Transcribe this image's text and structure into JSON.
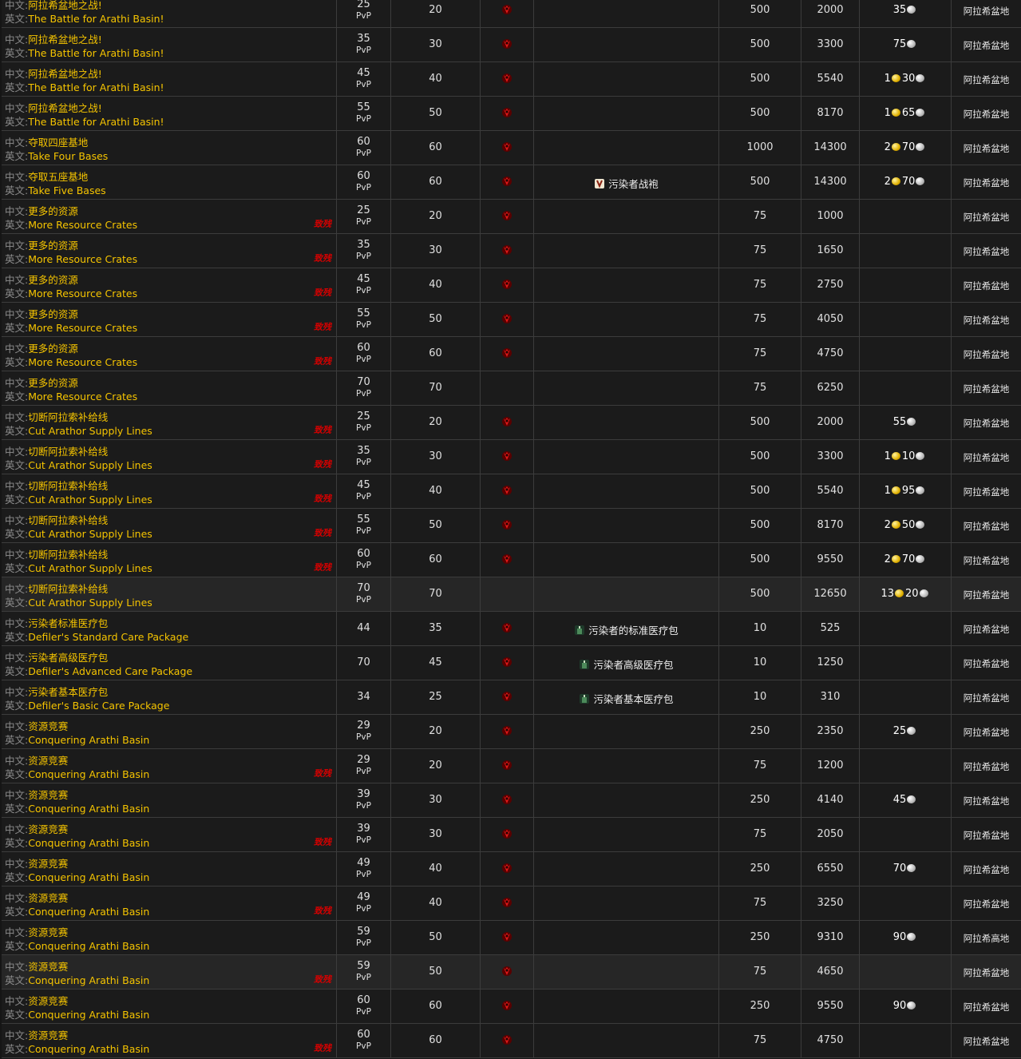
{
  "table": {
    "labels": {
      "cn": "中文:",
      "en": "英文:"
    },
    "rows": [
      {
        "cn": "阿拉希盆地之战!",
        "en": "The Battle for Arathi Basin!",
        "level": 25,
        "tag": "PvP",
        "req": 20,
        "horde": true,
        "rep": 500,
        "xp": 2000,
        "silver": 35,
        "zone": "阿拉希盆地"
      },
      {
        "cn": "阿拉希盆地之战!",
        "en": "The Battle for Arathi Basin!",
        "level": 35,
        "tag": "PvP",
        "req": 30,
        "horde": true,
        "rep": 500,
        "xp": 3300,
        "silver": 75,
        "zone": "阿拉希盆地"
      },
      {
        "cn": "阿拉希盆地之战!",
        "en": "The Battle for Arathi Basin!",
        "level": 45,
        "tag": "PvP",
        "req": 40,
        "horde": true,
        "rep": 500,
        "xp": 5540,
        "gold": 1,
        "silver": 30,
        "zone": "阿拉希盆地"
      },
      {
        "cn": "阿拉希盆地之战!",
        "en": "The Battle for Arathi Basin!",
        "level": 55,
        "tag": "PvP",
        "req": 50,
        "horde": true,
        "rep": 500,
        "xp": 8170,
        "gold": 1,
        "silver": 65,
        "zone": "阿拉希盆地"
      },
      {
        "cn": "夺取四座基地",
        "en": "Take Four Bases",
        "level": 60,
        "tag": "PvP",
        "req": 60,
        "horde": true,
        "rep": 1000,
        "xp": 14300,
        "gold": 2,
        "silver": 70,
        "zone": "阿拉希盆地"
      },
      {
        "cn": "夺取五座基地",
        "en": "Take Five Bases",
        "level": 60,
        "tag": "PvP",
        "req": 60,
        "horde": true,
        "reward": "污染者战袍",
        "rep": 500,
        "xp": 14300,
        "gold": 2,
        "silver": 70,
        "zone": "阿拉希盆地"
      },
      {
        "cn": "更多的资源",
        "en": "More Resource Crates",
        "note": "致残",
        "level": 25,
        "tag": "PvP",
        "req": 20,
        "horde": true,
        "rep": 75,
        "xp": 1000,
        "zone": "阿拉希盆地"
      },
      {
        "cn": "更多的资源",
        "en": "More Resource Crates",
        "note": "致残",
        "level": 35,
        "tag": "PvP",
        "req": 30,
        "horde": true,
        "rep": 75,
        "xp": 1650,
        "zone": "阿拉希盆地"
      },
      {
        "cn": "更多的资源",
        "en": "More Resource Crates",
        "note": "致残",
        "level": 45,
        "tag": "PvP",
        "req": 40,
        "horde": true,
        "rep": 75,
        "xp": 2750,
        "zone": "阿拉希盆地"
      },
      {
        "cn": "更多的资源",
        "en": "More Resource Crates",
        "note": "致残",
        "level": 55,
        "tag": "PvP",
        "req": 50,
        "horde": true,
        "rep": 75,
        "xp": 4050,
        "zone": "阿拉希盆地"
      },
      {
        "cn": "更多的资源",
        "en": "More Resource Crates",
        "note": "致残",
        "level": 60,
        "tag": "PvP",
        "req": 60,
        "horde": true,
        "rep": 75,
        "xp": 4750,
        "zone": "阿拉希盆地"
      },
      {
        "cn": "更多的资源",
        "en": "More Resource Crates",
        "level": 70,
        "tag": "PvP",
        "req": 70,
        "horde": false,
        "rep": 75,
        "xp": 6250,
        "zone": "阿拉希盆地"
      },
      {
        "cn": "切断阿拉索补给线",
        "en": "Cut Arathor Supply Lines",
        "note": "致残",
        "level": 25,
        "tag": "PvP",
        "req": 20,
        "horde": true,
        "rep": 500,
        "xp": 2000,
        "silver": 55,
        "zone": "阿拉希盆地"
      },
      {
        "cn": "切断阿拉索补给线",
        "en": "Cut Arathor Supply Lines",
        "note": "致残",
        "level": 35,
        "tag": "PvP",
        "req": 30,
        "horde": true,
        "rep": 500,
        "xp": 3300,
        "gold": 1,
        "silver": 10,
        "zone": "阿拉希盆地"
      },
      {
        "cn": "切断阿拉索补给线",
        "en": "Cut Arathor Supply Lines",
        "note": "致残",
        "level": 45,
        "tag": "PvP",
        "req": 40,
        "horde": true,
        "rep": 500,
        "xp": 5540,
        "gold": 1,
        "silver": 95,
        "zone": "阿拉希盆地"
      },
      {
        "cn": "切断阿拉索补给线",
        "en": "Cut Arathor Supply Lines",
        "note": "致残",
        "level": 55,
        "tag": "PvP",
        "req": 50,
        "horde": true,
        "rep": 500,
        "xp": 8170,
        "gold": 2,
        "silver": 50,
        "zone": "阿拉希盆地"
      },
      {
        "cn": "切断阿拉索补给线",
        "en": "Cut Arathor Supply Lines",
        "note": "致残",
        "level": 60,
        "tag": "PvP",
        "req": 60,
        "horde": true,
        "rep": 500,
        "xp": 9550,
        "gold": 2,
        "silver": 70,
        "zone": "阿拉希盆地"
      },
      {
        "cn": "切断阿拉索补给线",
        "en": "Cut Arathor Supply Lines",
        "level": 70,
        "tag": "PvP",
        "req": 70,
        "horde": false,
        "rep": 500,
        "xp": 12650,
        "gold": 13,
        "silver": 20,
        "zone": "阿拉希盆地",
        "highlight": true
      },
      {
        "cn": "污染者标准医疗包",
        "en": "Defiler's Standard Care Package",
        "level": 44,
        "req": 35,
        "horde": true,
        "reward": "污染者的标准医疗包",
        "rep": 10,
        "xp": 525,
        "zone": "阿拉希盆地"
      },
      {
        "cn": "污染者高级医疗包",
        "en": "Defiler's Advanced Care Package",
        "level": 70,
        "req": 45,
        "horde": true,
        "reward": "污染者高级医疗包",
        "rep": 10,
        "xp": 1250,
        "zone": "阿拉希盆地"
      },
      {
        "cn": "污染者基本医疗包",
        "en": "Defiler's Basic Care Package",
        "level": 34,
        "req": 25,
        "horde": true,
        "reward": "污染者基本医疗包",
        "rep": 10,
        "xp": 310,
        "zone": "阿拉希盆地"
      },
      {
        "cn": "资源竞赛",
        "en": "Conquering Arathi Basin",
        "level": 29,
        "tag": "PvP",
        "req": 20,
        "horde": true,
        "rep": 250,
        "xp": 2350,
        "silver": 25,
        "zone": "阿拉希盆地"
      },
      {
        "cn": "资源竞赛",
        "en": "Conquering Arathi Basin",
        "note": "致残",
        "level": 29,
        "tag": "PvP",
        "req": 20,
        "horde": true,
        "rep": 75,
        "xp": 1200,
        "zone": "阿拉希盆地"
      },
      {
        "cn": "资源竞赛",
        "en": "Conquering Arathi Basin",
        "level": 39,
        "tag": "PvP",
        "req": 30,
        "horde": true,
        "rep": 250,
        "xp": 4140,
        "silver": 45,
        "zone": "阿拉希盆地"
      },
      {
        "cn": "资源竞赛",
        "en": "Conquering Arathi Basin",
        "note": "致残",
        "level": 39,
        "tag": "PvP",
        "req": 30,
        "horde": true,
        "rep": 75,
        "xp": 2050,
        "zone": "阿拉希盆地"
      },
      {
        "cn": "资源竞赛",
        "en": "Conquering Arathi Basin",
        "level": 49,
        "tag": "PvP",
        "req": 40,
        "horde": true,
        "rep": 250,
        "xp": 6550,
        "silver": 70,
        "zone": "阿拉希盆地"
      },
      {
        "cn": "资源竞赛",
        "en": "Conquering Arathi Basin",
        "note": "致残",
        "level": 49,
        "tag": "PvP",
        "req": 40,
        "horde": true,
        "rep": 75,
        "xp": 3250,
        "zone": "阿拉希盆地"
      },
      {
        "cn": "资源竞赛",
        "en": "Conquering Arathi Basin",
        "level": 59,
        "tag": "PvP",
        "req": 50,
        "horde": true,
        "rep": 250,
        "xp": 9310,
        "silver": 90,
        "zone": "阿拉希高地"
      },
      {
        "cn": "资源竞赛",
        "en": "Conquering Arathi Basin",
        "note": "致残",
        "level": 59,
        "tag": "PvP",
        "req": 50,
        "horde": true,
        "rep": 75,
        "xp": 4650,
        "zone": "阿拉希盆地",
        "highlight": true
      },
      {
        "cn": "资源竞赛",
        "en": "Conquering Arathi Basin",
        "level": 60,
        "tag": "PvP",
        "req": 60,
        "horde": true,
        "rep": 250,
        "xp": 9550,
        "silver": 90,
        "zone": "阿拉希盆地"
      },
      {
        "cn": "资源竞赛",
        "en": "Conquering Arathi Basin",
        "note": "致残",
        "level": 60,
        "tag": "PvP",
        "req": 60,
        "horde": true,
        "rep": 75,
        "xp": 4750,
        "zone": "阿拉希盆地"
      }
    ]
  }
}
